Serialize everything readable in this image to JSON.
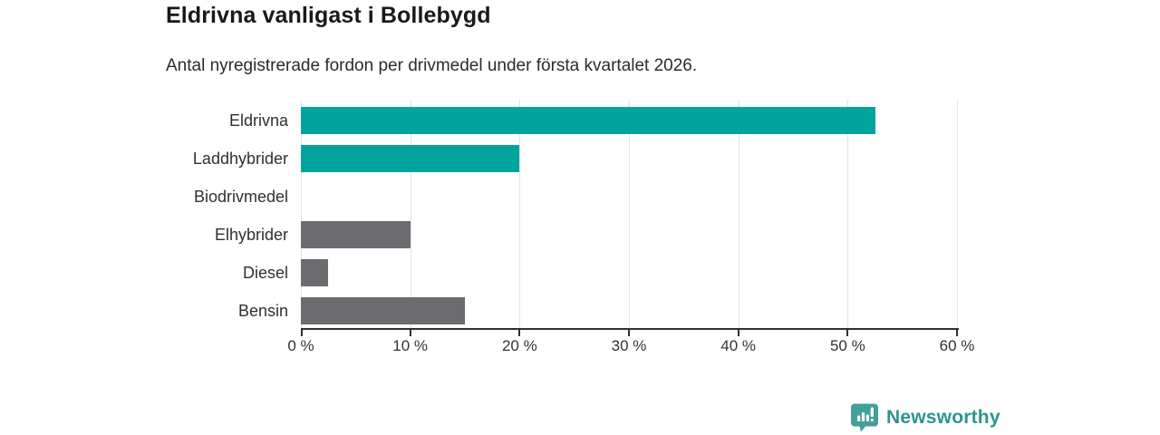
{
  "title": "Eldrivna vanligast i Bollebygd",
  "subtitle": "Antal nyregistrerade fordon per drivmedel under första kvartalet 2026.",
  "chart_data": {
    "type": "bar",
    "orientation": "horizontal",
    "title": "Eldrivna vanligast i Bollebygd",
    "subtitle": "Antal nyregistrerade fordon per drivmedel under första kvartalet 2026.",
    "categories": [
      "Eldrivna",
      "Laddhybrider",
      "Biodrivmedel",
      "Elhybrider",
      "Diesel",
      "Bensin"
    ],
    "values": [
      52.5,
      20,
      0,
      10,
      2.5,
      15
    ],
    "unit": "%",
    "xlim": [
      0,
      60
    ],
    "x_ticks": [
      0,
      10,
      20,
      30,
      40,
      50,
      60
    ],
    "x_tick_labels": [
      "0 %",
      "10 %",
      "20 %",
      "30 %",
      "40 %",
      "50 %",
      "60 %"
    ],
    "bar_colors": [
      "#00a49c",
      "#00a49c",
      "#6b6b70",
      "#6b6b70",
      "#6b6b70",
      "#6b6b70"
    ],
    "grid": "vertical-only",
    "legend": "none"
  },
  "colors": {
    "accent_teal": "#00a49c",
    "neutral_gray": "#6b6b70",
    "gridline": "#e4e4e4",
    "axis": "#2f2f2f",
    "brand_teal": "#2e948e",
    "logo_icon_fill": "#43a099"
  },
  "footer": {
    "brand": "Newsworthy",
    "logo_icon": "bar-chart-speech-bubble-icon"
  }
}
